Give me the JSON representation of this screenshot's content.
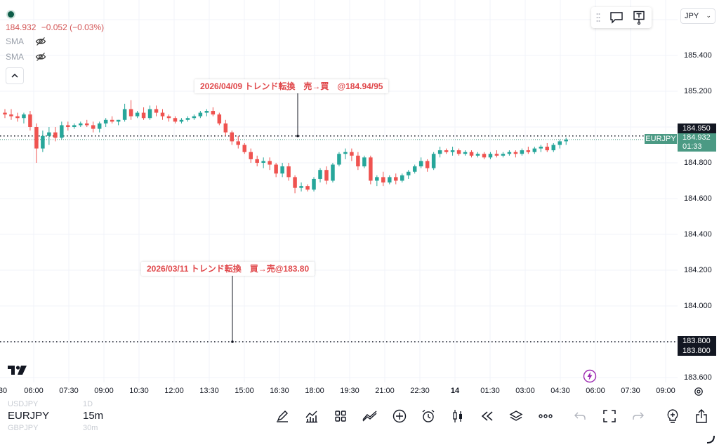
{
  "legend": {
    "price": "184.932",
    "change": "−0.052 (−0.03%)",
    "sma1_label": "SMA",
    "sma2_label": "SMA"
  },
  "currency": "JPY",
  "annotations": {
    "top": "2026/04/09 トレンド転換　売→買　@184.94/95",
    "bottom": "2026/03/11 トレンド転換　買→売@183.80"
  },
  "price_scale": {
    "ticks": [
      "185.400",
      "185.200",
      "184.800",
      "184.600",
      "184.400",
      "184.200",
      "184.000",
      "183.600"
    ],
    "tag_level_950": "184.950",
    "tag_symbol": "EURJPY",
    "tag_current_price": "184.932",
    "tag_countdown": "01:33",
    "tag_level_800_a": "183.800",
    "tag_level_800_b": "183.800"
  },
  "time_axis": {
    "labels": [
      "30",
      "06:00",
      "07:30",
      "09:00",
      "10:30",
      "12:00",
      "13:30",
      "15:00",
      "16:30",
      "18:00",
      "19:30",
      "21:00",
      "22:30",
      "14",
      "01:30",
      "03:00",
      "04:30",
      "06:00",
      "07:30",
      "09:00"
    ]
  },
  "bottom": {
    "symbol_prev": "USDJPY",
    "symbol": "EURJPY",
    "symbol_next": "GBPJPY",
    "interval_prev": "1D",
    "interval": "15m",
    "interval_next": "30m"
  },
  "colors": {
    "up": "#26a69a",
    "down": "#ef5350",
    "annotation": "#e0484b",
    "tag_dark": "#131722",
    "tag_green": "#4b9a84"
  },
  "chart_data": {
    "type": "candlestick",
    "symbol": "EURJPY",
    "interval": "15m",
    "ylim": [
      183.55,
      185.58
    ],
    "horizontal_levels": [
      184.95,
      183.8
    ],
    "candles": [
      [
        185.08,
        185.1,
        185.05,
        185.07
      ],
      [
        185.07,
        185.1,
        185.04,
        185.06
      ],
      [
        185.06,
        185.08,
        185.03,
        185.05
      ],
      [
        185.05,
        185.08,
        185.02,
        185.07
      ],
      [
        185.07,
        185.09,
        184.98,
        185.0
      ],
      [
        185.0,
        185.02,
        184.8,
        184.88
      ],
      [
        184.88,
        184.98,
        184.86,
        184.95
      ],
      [
        184.95,
        185.0,
        184.9,
        184.97
      ],
      [
        184.97,
        185.0,
        184.92,
        184.94
      ],
      [
        184.94,
        185.03,
        184.93,
        185.01
      ],
      [
        185.01,
        185.03,
        184.98,
        185.0
      ],
      [
        185.0,
        185.02,
        184.99,
        185.01
      ],
      [
        185.01,
        185.03,
        185.0,
        185.02
      ],
      [
        185.02,
        185.04,
        185.0,
        185.01
      ],
      [
        185.01,
        185.03,
        184.97,
        184.99
      ],
      [
        184.99,
        185.03,
        184.97,
        185.02
      ],
      [
        185.02,
        185.05,
        185.0,
        185.04
      ],
      [
        185.04,
        185.06,
        185.02,
        185.03
      ],
      [
        185.03,
        185.04,
        185.01,
        185.04
      ],
      [
        185.04,
        185.13,
        185.03,
        185.1
      ],
      [
        185.1,
        185.15,
        185.04,
        185.06
      ],
      [
        185.06,
        185.09,
        185.05,
        185.08
      ],
      [
        185.08,
        185.11,
        185.04,
        185.05
      ],
      [
        185.05,
        185.12,
        185.04,
        185.1
      ],
      [
        185.1,
        185.12,
        185.06,
        185.08
      ],
      [
        185.08,
        185.1,
        185.04,
        185.06
      ],
      [
        185.06,
        185.07,
        185.03,
        185.05
      ],
      [
        185.05,
        185.06,
        185.02,
        185.03
      ],
      [
        185.03,
        185.05,
        185.02,
        185.04
      ],
      [
        185.04,
        185.06,
        185.03,
        185.05
      ],
      [
        185.05,
        185.07,
        185.04,
        185.06
      ],
      [
        185.06,
        185.09,
        185.05,
        185.08
      ],
      [
        185.08,
        185.1,
        185.06,
        185.09
      ],
      [
        185.09,
        185.11,
        185.06,
        185.07
      ],
      [
        185.07,
        185.08,
        185.01,
        185.02
      ],
      [
        185.02,
        185.04,
        184.95,
        184.97
      ],
      [
        184.97,
        184.98,
        184.9,
        184.92
      ],
      [
        184.92,
        184.95,
        184.88,
        184.9
      ],
      [
        184.9,
        184.91,
        184.85,
        184.86
      ],
      [
        184.86,
        184.88,
        184.8,
        184.82
      ],
      [
        184.82,
        184.84,
        184.78,
        184.8
      ],
      [
        184.8,
        184.83,
        184.77,
        184.81
      ],
      [
        184.81,
        184.83,
        184.76,
        184.79
      ],
      [
        184.79,
        184.8,
        184.72,
        184.74
      ],
      [
        184.74,
        184.8,
        184.72,
        184.78
      ],
      [
        184.78,
        184.8,
        184.7,
        184.72
      ],
      [
        184.72,
        184.73,
        184.63,
        184.66
      ],
      [
        184.66,
        184.69,
        184.64,
        184.67
      ],
      [
        184.67,
        184.68,
        184.64,
        184.65
      ],
      [
        184.65,
        184.72,
        184.64,
        184.71
      ],
      [
        184.71,
        184.77,
        184.69,
        184.76
      ],
      [
        184.76,
        184.78,
        184.68,
        184.7
      ],
      [
        184.7,
        184.8,
        184.69,
        184.79
      ],
      [
        184.79,
        184.86,
        184.78,
        184.85
      ],
      [
        184.85,
        184.88,
        184.82,
        184.86
      ],
      [
        184.86,
        184.88,
        184.81,
        184.84
      ],
      [
        184.84,
        184.86,
        184.76,
        184.78
      ],
      [
        184.78,
        184.84,
        184.77,
        184.83
      ],
      [
        184.83,
        184.84,
        184.68,
        184.7
      ],
      [
        184.7,
        184.73,
        184.67,
        184.72
      ],
      [
        184.72,
        184.75,
        184.67,
        184.69
      ],
      [
        184.69,
        184.73,
        184.68,
        184.72
      ],
      [
        184.72,
        184.74,
        184.68,
        184.7
      ],
      [
        184.7,
        184.74,
        184.69,
        184.73
      ],
      [
        184.73,
        184.76,
        184.71,
        184.75
      ],
      [
        184.75,
        184.79,
        184.74,
        184.78
      ],
      [
        184.78,
        184.83,
        184.77,
        184.81
      ],
      [
        184.81,
        184.82,
        184.75,
        184.77
      ],
      [
        184.77,
        184.86,
        184.76,
        184.85
      ],
      [
        184.85,
        184.89,
        184.83,
        184.87
      ],
      [
        184.87,
        184.88,
        184.85,
        184.86
      ],
      [
        184.86,
        184.89,
        184.84,
        184.87
      ],
      [
        184.87,
        184.88,
        184.84,
        184.85
      ],
      [
        184.85,
        184.87,
        184.84,
        184.86
      ],
      [
        184.86,
        184.87,
        184.83,
        184.84
      ],
      [
        184.84,
        184.86,
        184.83,
        184.85
      ],
      [
        184.85,
        184.86,
        184.82,
        184.83
      ],
      [
        184.83,
        184.86,
        184.82,
        184.85
      ],
      [
        184.85,
        184.87,
        184.83,
        184.84
      ],
      [
        184.84,
        184.86,
        184.83,
        184.85
      ],
      [
        184.85,
        184.87,
        184.84,
        184.86
      ],
      [
        184.86,
        184.87,
        184.83,
        184.85
      ],
      [
        184.85,
        184.88,
        184.84,
        184.87
      ],
      [
        184.87,
        184.89,
        184.85,
        184.86
      ],
      [
        184.86,
        184.89,
        184.85,
        184.88
      ],
      [
        184.88,
        184.9,
        184.86,
        184.89
      ],
      [
        184.89,
        184.91,
        184.86,
        184.87
      ],
      [
        184.87,
        184.91,
        184.86,
        184.9
      ],
      [
        184.9,
        184.93,
        184.88,
        184.92
      ],
      [
        184.92,
        184.94,
        184.9,
        184.93
      ]
    ]
  }
}
